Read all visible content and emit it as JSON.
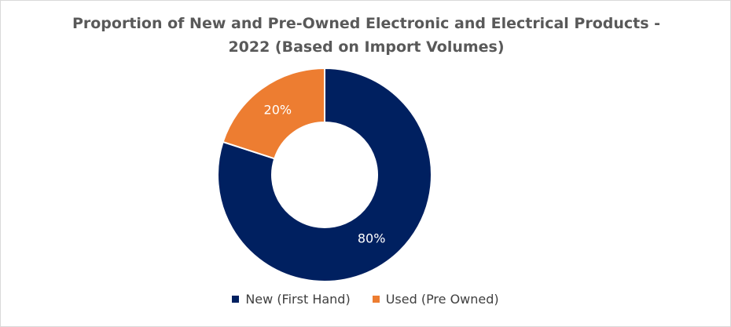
{
  "chart_data": {
    "type": "donut",
    "title": "Proportion of New and Pre-Owned Electronic and Electrical Products - 2022 (Based on Import Volumes)",
    "categories": [
      "New (First Hand)",
      "Used (Pre Owned)"
    ],
    "values": [
      80,
      20
    ],
    "value_labels": [
      "80%",
      "20%"
    ],
    "colors": [
      "#002060",
      "#ed7d31"
    ],
    "legend": "bottom"
  }
}
